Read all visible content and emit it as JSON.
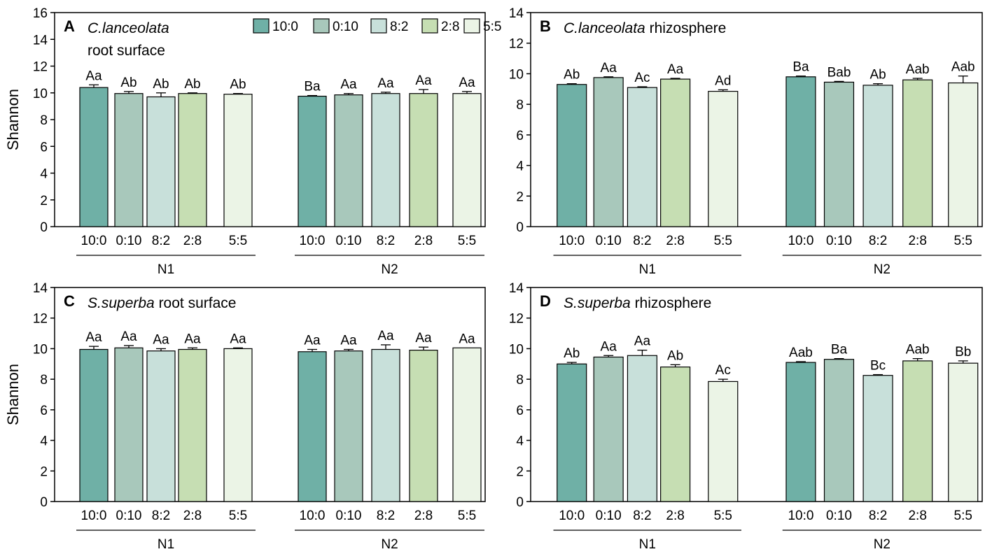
{
  "figure": {
    "legend": {
      "entries": [
        {
          "label": "10:0",
          "color": "#6fb0a6"
        },
        {
          "label": "0:10",
          "color": "#a8c8bb"
        },
        {
          "label": "8:2",
          "color": "#c8e0da"
        },
        {
          "label": "2:8",
          "color": "#c6deb3"
        },
        {
          "label": "5:5",
          "color": "#ebf4e6"
        }
      ]
    }
  },
  "chart_data": [
    {
      "type": "bar",
      "panel": "A",
      "title_italic": "C.lanceolata",
      "title_rest": "root surface",
      "title_multiline": true,
      "ylabel": "Shannon",
      "ylim": [
        0,
        16
      ],
      "yticks": [
        0,
        2,
        4,
        6,
        8,
        10,
        12,
        14,
        16
      ],
      "groups": [
        "N1",
        "N2"
      ],
      "categories": [
        "10:0",
        "0:10",
        "8:2",
        "2:8",
        "5:5"
      ],
      "series": [
        {
          "group": "N1",
          "values": [
            10.4,
            9.95,
            9.7,
            9.95,
            9.9
          ],
          "errors": [
            0.2,
            0.15,
            0.3,
            0.05,
            0.05
          ],
          "labels": [
            "Aa",
            "Ab",
            "Ab",
            "Ab",
            "Ab"
          ]
        },
        {
          "group": "N2",
          "values": [
            9.75,
            9.85,
            9.95,
            9.95,
            9.95
          ],
          "errors": [
            0.05,
            0.1,
            0.1,
            0.3,
            0.15
          ],
          "labels": [
            "Ba",
            "Aa",
            "Aa",
            "Aa",
            "Aa"
          ]
        }
      ]
    },
    {
      "type": "bar",
      "panel": "B",
      "title_italic": "C.lanceolata",
      "title_rest": " rhizosphere",
      "title_multiline": false,
      "ylabel": "",
      "ylim": [
        0,
        14
      ],
      "yticks": [
        0,
        2,
        4,
        6,
        8,
        10,
        12,
        14
      ],
      "groups": [
        "N1",
        "N2"
      ],
      "categories": [
        "10:0",
        "0:10",
        "8:2",
        "2:8",
        "5:5"
      ],
      "series": [
        {
          "group": "N1",
          "values": [
            9.3,
            9.75,
            9.1,
            9.65,
            8.85
          ],
          "errors": [
            0.05,
            0.05,
            0.05,
            0.05,
            0.1
          ],
          "labels": [
            "Ab",
            "Aa",
            "Ac",
            "Aa",
            "Ad"
          ]
        },
        {
          "group": "N2",
          "values": [
            9.8,
            9.45,
            9.25,
            9.6,
            9.4
          ],
          "errors": [
            0.05,
            0.05,
            0.1,
            0.1,
            0.45
          ],
          "labels": [
            "Ba",
            "Bab",
            "Ab",
            "Aab",
            "Aab"
          ]
        }
      ]
    },
    {
      "type": "bar",
      "panel": "C",
      "title_italic": "S.superba",
      "title_rest": " root surface",
      "title_multiline": false,
      "ylabel": "Shannon",
      "ylim": [
        0,
        14
      ],
      "yticks": [
        0,
        2,
        4,
        6,
        8,
        10,
        12,
        14
      ],
      "groups": [
        "N1",
        "N2"
      ],
      "categories": [
        "10:0",
        "0:10",
        "8:2",
        "2:8",
        "5:5"
      ],
      "series": [
        {
          "group": "N1",
          "values": [
            9.95,
            10.05,
            9.85,
            9.95,
            10.0
          ],
          "errors": [
            0.2,
            0.15,
            0.15,
            0.1,
            0.05
          ],
          "labels": [
            "Aa",
            "Aa",
            "Aa",
            "Aa",
            "Aa"
          ]
        },
        {
          "group": "N2",
          "values": [
            9.8,
            9.85,
            9.95,
            9.9,
            10.05
          ],
          "errors": [
            0.15,
            0.1,
            0.3,
            0.2,
            0.0
          ],
          "labels": [
            "Aa",
            "Aa",
            "Aa",
            "Aa",
            "Aa"
          ]
        }
      ]
    },
    {
      "type": "bar",
      "panel": "D",
      "title_italic": "S.superba",
      "title_rest": " rhizosphere",
      "title_multiline": false,
      "ylabel": "",
      "ylim": [
        0,
        14
      ],
      "yticks": [
        0,
        2,
        4,
        6,
        8,
        10,
        12,
        14
      ],
      "groups": [
        "N1",
        "N2"
      ],
      "categories": [
        "10:0",
        "0:10",
        "8:2",
        "2:8",
        "5:5"
      ],
      "series": [
        {
          "group": "N1",
          "values": [
            9.0,
            9.45,
            9.55,
            8.8,
            7.85
          ],
          "errors": [
            0.1,
            0.1,
            0.35,
            0.15,
            0.15
          ],
          "labels": [
            "Ab",
            "Aa",
            "Aa",
            "Ab",
            "Ac"
          ]
        },
        {
          "group": "N2",
          "values": [
            9.1,
            9.3,
            8.25,
            9.2,
            9.05
          ],
          "errors": [
            0.05,
            0.05,
            0.05,
            0.15,
            0.15
          ],
          "labels": [
            "Aab",
            "Ba",
            "Bc",
            "Aab",
            "Bb"
          ]
        }
      ]
    }
  ]
}
